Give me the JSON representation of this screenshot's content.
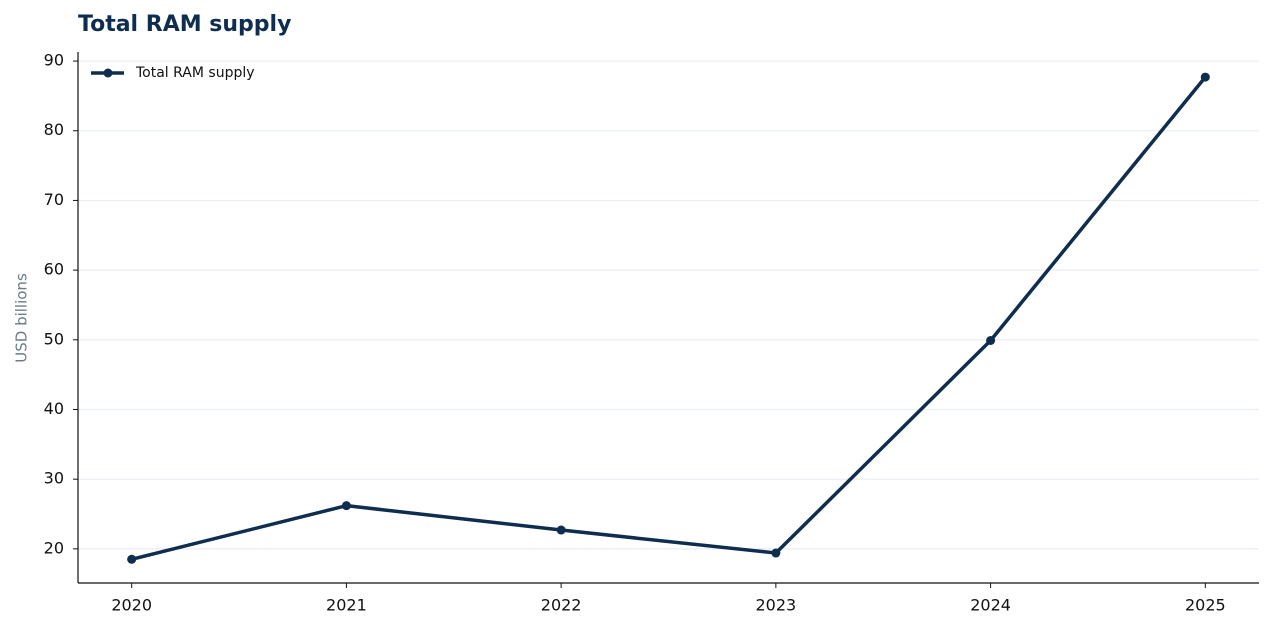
{
  "chart_data": {
    "type": "line",
    "title": "Total RAM supply",
    "ylabel": "USD billions",
    "x": [
      2020,
      2021,
      2022,
      2023,
      2024,
      2025
    ],
    "series": [
      {
        "name": "Total RAM supply",
        "color": "#0f2d4f",
        "values": [
          18.5,
          26.2,
          22.7,
          19.4,
          49.9,
          87.7
        ]
      }
    ],
    "xlim": [
      2019.75,
      2025.25
    ],
    "xticks": [
      2020,
      2021,
      2022,
      2023,
      2024,
      2025
    ],
    "ylim": [
      15.1,
      91.3
    ],
    "yticks": [
      20,
      30,
      40,
      50,
      60,
      70,
      80,
      90
    ],
    "grid": true,
    "legend": "upper left"
  }
}
